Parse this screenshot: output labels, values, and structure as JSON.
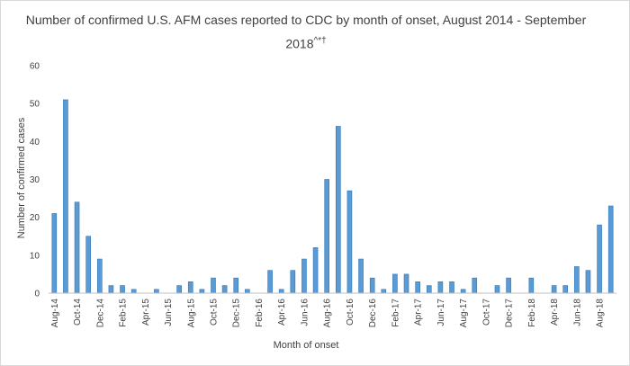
{
  "chart_data": {
    "type": "bar",
    "title": "Number of confirmed U.S. AFM cases reported to CDC by month of onset, August 2014 - September 2018",
    "title_superscript": "^*†",
    "xlabel": "Month of onset",
    "ylabel": "Number of confirmed cases",
    "ylim": [
      0,
      60
    ],
    "yticks": [
      0,
      10,
      20,
      30,
      40,
      50,
      60
    ],
    "grid": false,
    "legend": "none",
    "bar_color": "#5b9bd5",
    "categories": [
      "Aug-14",
      "Sep-14",
      "Oct-14",
      "Nov-14",
      "Dec-14",
      "Jan-15",
      "Feb-15",
      "Mar-15",
      "Apr-15",
      "May-15",
      "Jun-15",
      "Jul-15",
      "Aug-15",
      "Sep-15",
      "Oct-15",
      "Nov-15",
      "Dec-15",
      "Jan-16",
      "Feb-16",
      "Mar-16",
      "Apr-16",
      "May-16",
      "Jun-16",
      "Jul-16",
      "Aug-16",
      "Sep-16",
      "Oct-16",
      "Nov-16",
      "Dec-16",
      "Jan-17",
      "Feb-17",
      "Mar-17",
      "Apr-17",
      "May-17",
      "Jun-17",
      "Jul-17",
      "Aug-17",
      "Sep-17",
      "Oct-17",
      "Nov-17",
      "Dec-17",
      "Jan-18",
      "Feb-18",
      "Mar-18",
      "Apr-18",
      "May-18",
      "Jun-18",
      "Jul-18",
      "Aug-18",
      "Sep-18"
    ],
    "tick_labels": [
      "Aug-14",
      "Oct-14",
      "Dec-14",
      "Feb-15",
      "Apr-15",
      "Jun-15",
      "Aug-15",
      "Oct-15",
      "Dec-15",
      "Feb-16",
      "Apr-16",
      "Jun-16",
      "Aug-16",
      "Oct-16",
      "Dec-16",
      "Feb-17",
      "Apr-17",
      "Jun-17",
      "Aug-17",
      "Oct-17",
      "Dec-17",
      "Feb-18",
      "Apr-18",
      "Jun-18",
      "Aug-18"
    ],
    "values": [
      21,
      51,
      24,
      15,
      9,
      2,
      2,
      1,
      0,
      1,
      0,
      2,
      3,
      1,
      4,
      2,
      4,
      1,
      0,
      6,
      1,
      6,
      9,
      12,
      30,
      44,
      27,
      9,
      4,
      1,
      5,
      5,
      3,
      2,
      3,
      3,
      1,
      4,
      0,
      2,
      4,
      0,
      4,
      0,
      2,
      2,
      7,
      6,
      18,
      23
    ]
  }
}
